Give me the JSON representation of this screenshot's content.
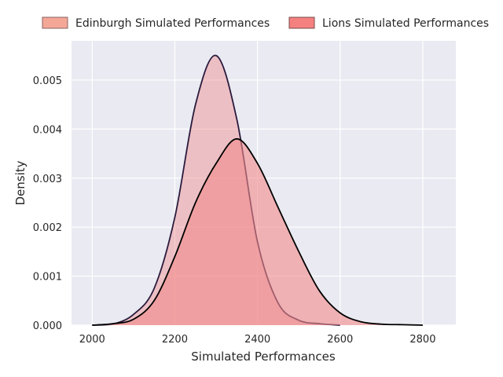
{
  "chart_data": {
    "type": "area",
    "title": "",
    "xlabel": "Simulated Performances",
    "ylabel": "Density",
    "xlim": [
      1950,
      2880
    ],
    "ylim": [
      0,
      0.0058
    ],
    "xticks": [
      2000,
      2200,
      2400,
      2600,
      2800
    ],
    "xtick_labels": [
      "2000",
      "2200",
      "2400",
      "2600",
      "2800"
    ],
    "yticks": [
      0,
      0.001,
      0.002,
      0.003,
      0.004,
      0.005
    ],
    "ytick_labels": [
      "0.000",
      "0.001",
      "0.002",
      "0.003",
      "0.004",
      "0.005"
    ],
    "grid": true,
    "legend_position": "top",
    "series": [
      {
        "name": "Edinburgh Simulated Performances",
        "fill_color": "#f08c8c",
        "fill_opacity": 0.45,
        "line_color": "#2a1b3d",
        "x": [
          2000,
          2050,
          2100,
          2150,
          2200,
          2250,
          2300,
          2350,
          2400,
          2450,
          2500,
          2550,
          2600
        ],
        "y": [
          0,
          2e-05,
          0.00022,
          0.00075,
          0.0022,
          0.0045,
          0.0055,
          0.0042,
          0.0017,
          0.00045,
          0.0001,
          3e-05,
          0
        ]
      },
      {
        "name": "Lions Simulated Performances",
        "fill_color": "#f28a8a",
        "fill_opacity": 0.6,
        "line_color": "#000000",
        "x": [
          2000,
          2050,
          2100,
          2150,
          2200,
          2250,
          2300,
          2350,
          2400,
          2450,
          2500,
          2550,
          2600,
          2650,
          2700,
          2750,
          2800
        ],
        "y": [
          0,
          3e-05,
          0.00012,
          0.0005,
          0.0014,
          0.0025,
          0.0033,
          0.0038,
          0.0033,
          0.0024,
          0.0015,
          0.0007,
          0.00025,
          7e-05,
          2e-05,
          1e-05,
          0
        ]
      }
    ],
    "legend_swatches": [
      "#f4a797",
      "#f58080"
    ]
  }
}
